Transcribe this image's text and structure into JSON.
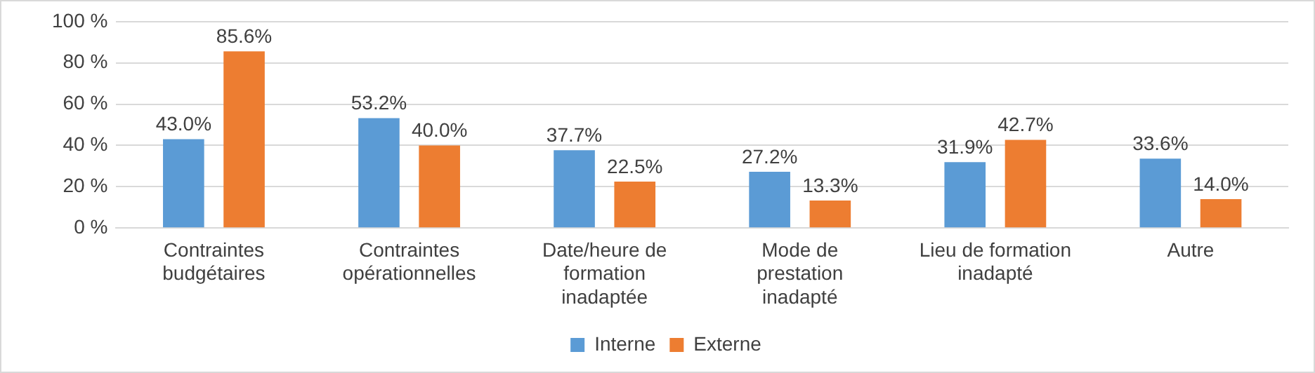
{
  "chart_data": {
    "type": "bar",
    "categories": [
      "Contraintes\nbudgétaires",
      "Contraintes\nopérationnelles",
      "Date/heure de\nformation\ninadaptée",
      "Mode de\nprestation\ninadapté",
      "Lieu de formation\ninadapté",
      "Autre"
    ],
    "series": [
      {
        "name": "Interne",
        "color": "#5b9bd5",
        "values": [
          43.0,
          53.2,
          37.7,
          27.2,
          31.9,
          33.6
        ],
        "value_labels": [
          "43.0%",
          "53.2%",
          "37.7%",
          "27.2%",
          "31.9%",
          "33.6%"
        ]
      },
      {
        "name": "Externe",
        "color": "#ed7d31",
        "values": [
          85.6,
          40.0,
          22.5,
          13.3,
          42.7,
          14.0
        ],
        "value_labels": [
          "85.6%",
          "40.0%",
          "22.5%",
          "13.3%",
          "42.7%",
          "14.0%"
        ]
      }
    ],
    "ylim": [
      0,
      100
    ],
    "yticks": [
      {
        "value": 0,
        "label": "0 %"
      },
      {
        "value": 20,
        "label": "20 %"
      },
      {
        "value": 40,
        "label": "40 %"
      },
      {
        "value": 60,
        "label": "60 %"
      },
      {
        "value": 80,
        "label": "80 %"
      },
      {
        "value": 100,
        "label": "100 %"
      }
    ],
    "grid": "y",
    "legend": "bottom"
  }
}
